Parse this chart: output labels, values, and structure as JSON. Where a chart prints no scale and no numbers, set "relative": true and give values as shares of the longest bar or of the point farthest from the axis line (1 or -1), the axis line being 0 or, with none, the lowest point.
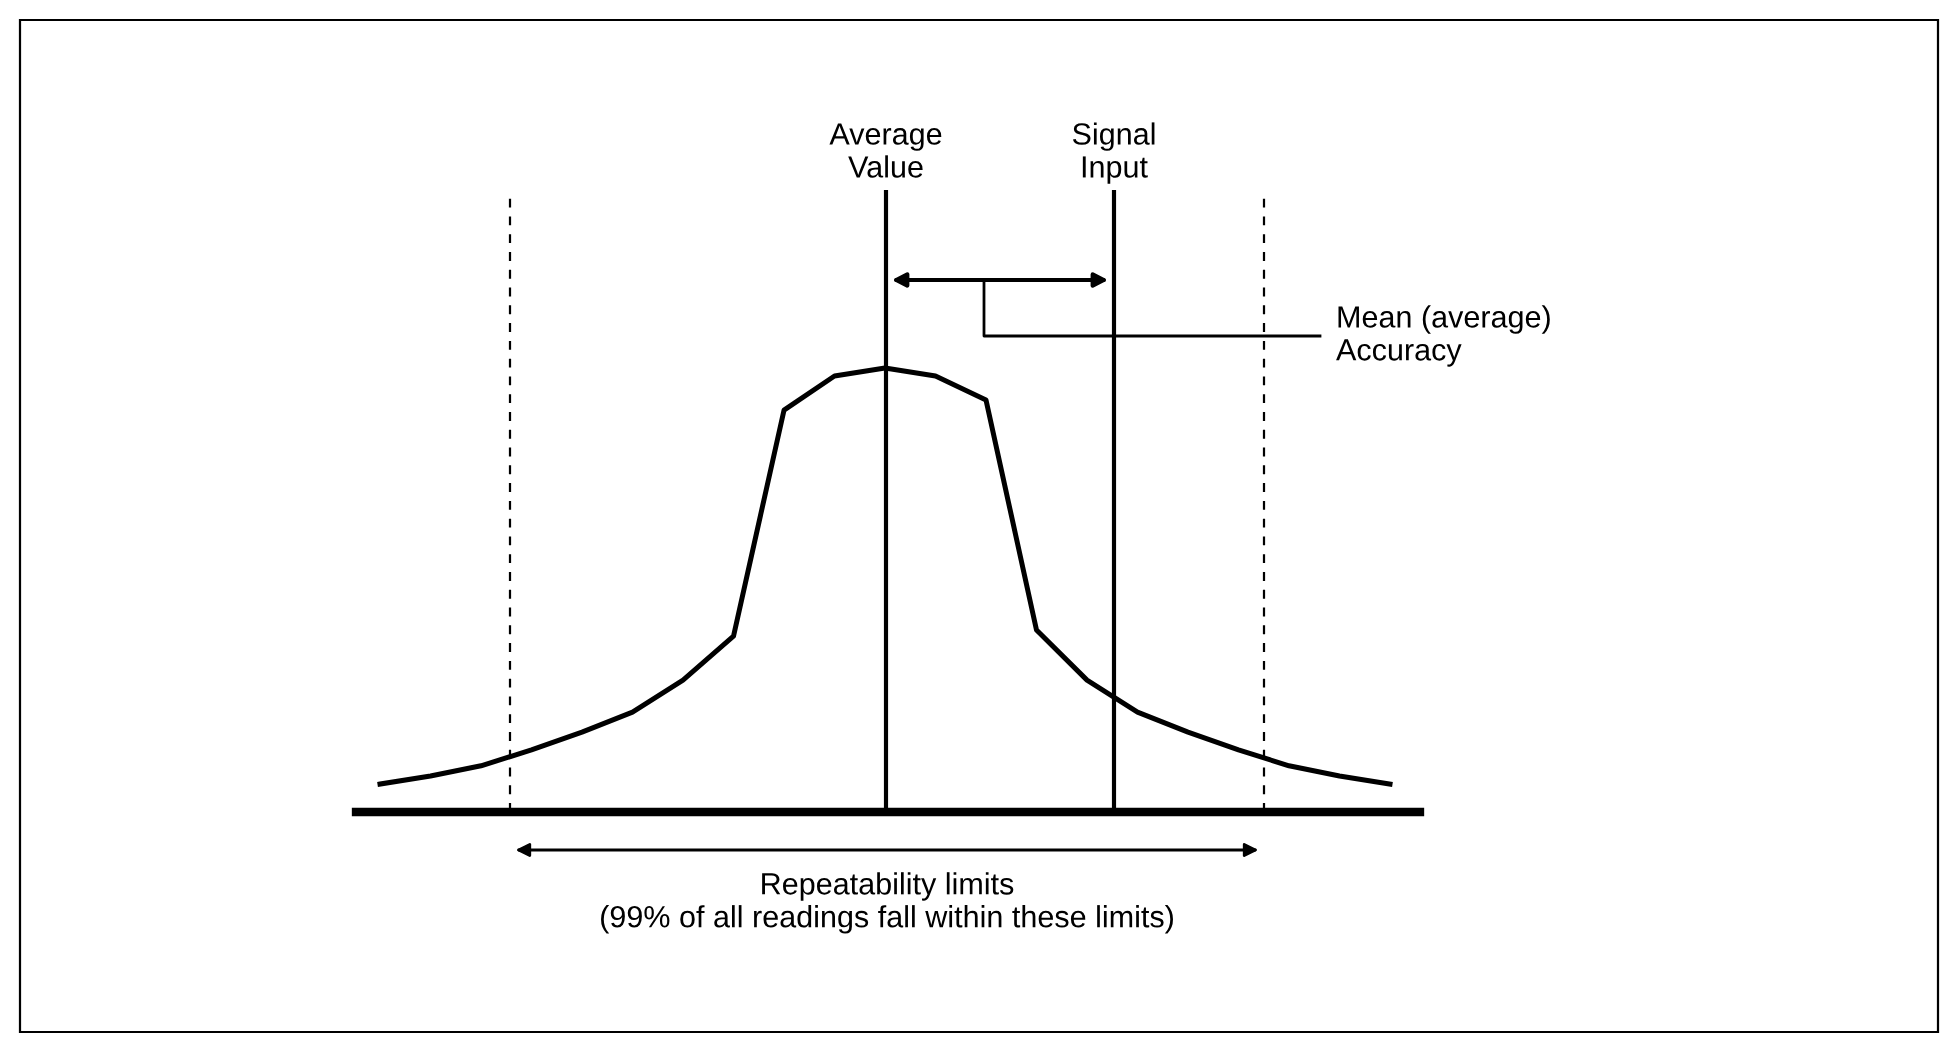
{
  "chart_data": {
    "type": "line",
    "relative": true,
    "legend": false,
    "marker": "none",
    "line_style": "solid",
    "categories": [
      null,
      null,
      null,
      null,
      null,
      null,
      null,
      null,
      null,
      null,
      null,
      null,
      null,
      null,
      null,
      null,
      null,
      null,
      null,
      null,
      null
    ],
    "series": [
      {
        "color": "#000000",
        "values": [
          0.063,
          0.081,
          0.104,
          0.14,
          0.18,
          0.225,
          0.297,
          0.396,
          0.905,
          0.982,
          1,
          0.982,
          0.928,
          0.41,
          0.297,
          0.225,
          0.18,
          0.14,
          0.104,
          0.081,
          0.063
        ]
      }
    ],
    "annotations": [
      "Average\nValue",
      "Signal\nInput",
      "Mean (average)\nAccuracy",
      "Repeatability limits\n(99% of all readings fall within these limits)"
    ]
  }
}
